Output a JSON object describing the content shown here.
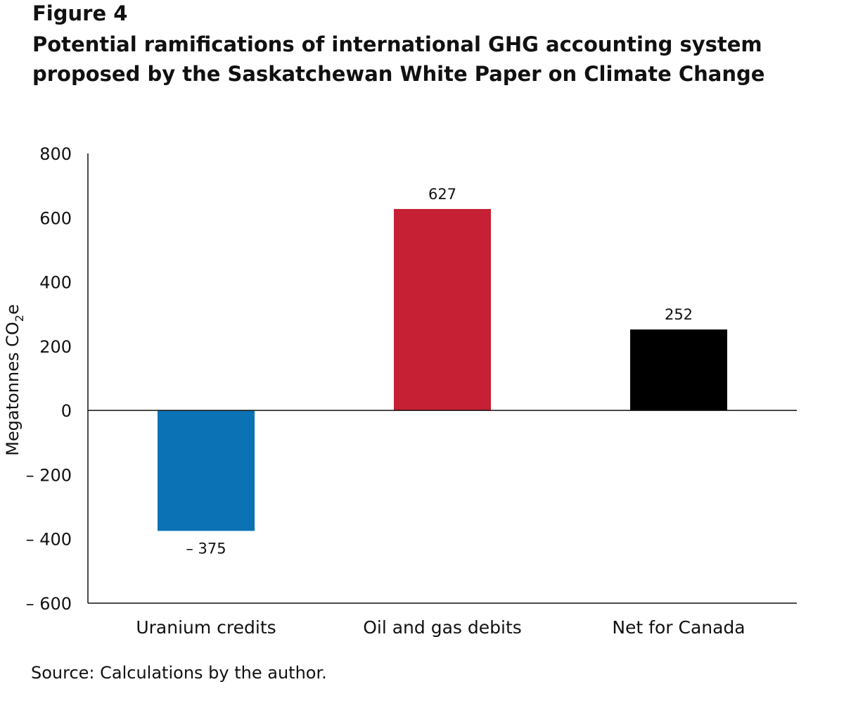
{
  "figure_label": "Figure 4",
  "title_lines": [
    "Potential ramifications of international GHG accounting system",
    "proposed by the Saskatchewan White Paper on Climate Change"
  ],
  "source": "Source: Calculations by the author.",
  "chart_data": {
    "type": "bar",
    "categories": [
      "Uranium credits",
      "Oil and gas debits",
      "Net for Canada"
    ],
    "values": [
      -375,
      627,
      252
    ],
    "value_labels": [
      "– 375",
      "627",
      "252"
    ],
    "colors": [
      "#0b72b5",
      "#c52033",
      "#000000"
    ],
    "ylabel_main": "Megatonnes CO",
    "ylabel_sub": "2",
    "ylabel_tail": "e",
    "ylim": [
      -600,
      800
    ],
    "yticks": [
      800,
      600,
      400,
      200,
      0,
      -200,
      -400,
      -600
    ],
    "ytick_labels": [
      "800",
      "600",
      "400",
      "200",
      "0",
      "– 200",
      "– 400",
      "– 600"
    ],
    "grid": false,
    "legend": "none"
  }
}
